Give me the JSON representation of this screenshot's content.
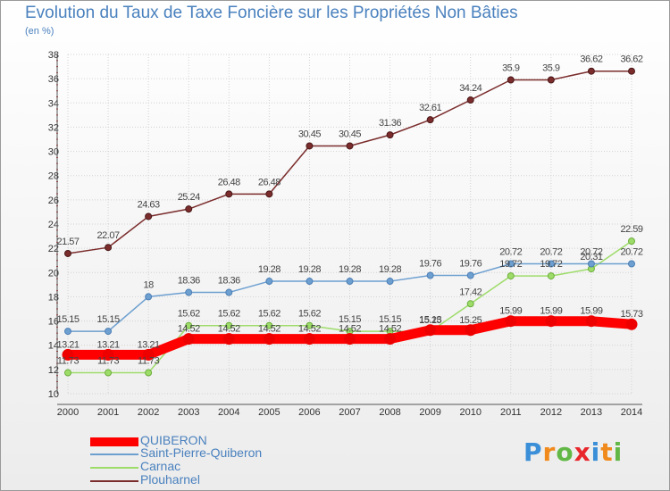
{
  "chart_data": {
    "type": "line",
    "title": "Evolution du Taux de Taxe Foncière sur les Propriétés Non Bâties",
    "ylabel": "(en %)",
    "xlabel": "",
    "categories": [
      "2000",
      "2001",
      "2002",
      "2003",
      "2004",
      "2005",
      "2006",
      "2007",
      "2008",
      "2009",
      "2010",
      "2011",
      "2012",
      "2013",
      "2014"
    ],
    "ylim": [
      10,
      38
    ],
    "yticks": [
      10,
      12,
      14,
      16,
      18,
      20,
      22,
      24,
      26,
      28,
      30,
      32,
      34,
      36,
      38
    ],
    "grid": true,
    "legend_position": "bottom-left",
    "series": [
      {
        "name": "QUIBERON",
        "color": "#ff0000",
        "values": [
          13.21,
          13.21,
          13.21,
          14.52,
          14.52,
          14.52,
          14.52,
          14.52,
          14.52,
          15.25,
          15.25,
          15.99,
          15.99,
          15.99,
          15.73
        ],
        "labels": [
          "13.21",
          "13.21",
          "13.21",
          "14.52",
          "14.52",
          "14.52",
          "14.52",
          "14.52",
          "14.52",
          "15.25",
          "15.25",
          "15.99",
          "15.99",
          "15.99",
          "15.73"
        ]
      },
      {
        "name": "Saint-Pierre-Quiberon",
        "color": "#6d9fd0",
        "values": [
          15.15,
          15.15,
          18,
          18.36,
          18.36,
          19.28,
          19.28,
          19.28,
          19.28,
          19.76,
          19.76,
          20.72,
          20.72,
          20.72,
          20.72
        ],
        "labels": [
          "15.15",
          "15.15",
          "18",
          "18.36",
          "18.36",
          "19.28",
          "19.28",
          "19.28",
          "19.28",
          "19.76",
          "19.76",
          "20.72",
          "20.72",
          "20.72",
          "20.72"
        ]
      },
      {
        "name": "Carnac",
        "color": "#9edc6a",
        "values": [
          11.73,
          11.73,
          11.73,
          15.62,
          15.62,
          15.62,
          15.62,
          15.15,
          15.15,
          15.13,
          17.42,
          19.72,
          19.72,
          20.31,
          22.59
        ],
        "labels": [
          "11.73",
          "11.73",
          "11.73",
          "15.62",
          "15.62",
          "15.62",
          "15.62",
          "15.15",
          "15.15",
          "15.13",
          "17.42",
          "19.72",
          "19.72",
          "20.31",
          "22.59"
        ]
      },
      {
        "name": "Plouharnel",
        "color": "#7b2c2c",
        "values": [
          21.57,
          22.07,
          24.63,
          25.24,
          26.48,
          26.48,
          30.45,
          30.45,
          31.36,
          32.61,
          34.24,
          35.9,
          35.9,
          36.62,
          36.62
        ],
        "labels": [
          "21.57",
          "22.07",
          "24.63",
          "25.24",
          "26.48",
          "26.48",
          "30.45",
          "30.45",
          "31.36",
          "32.61",
          "34.24",
          "35.9",
          "35.9",
          "36.62",
          "36.62"
        ]
      }
    ]
  },
  "logo": {
    "text": "Proxiti",
    "letters": [
      "P",
      "r",
      "o",
      "x",
      "i",
      "t",
      "i"
    ],
    "colors": [
      "#3a8fd8",
      "#f08a1c",
      "#62b846",
      "#e8262b",
      "#3a8fd8",
      "#f08a1c",
      "#62b846"
    ]
  }
}
